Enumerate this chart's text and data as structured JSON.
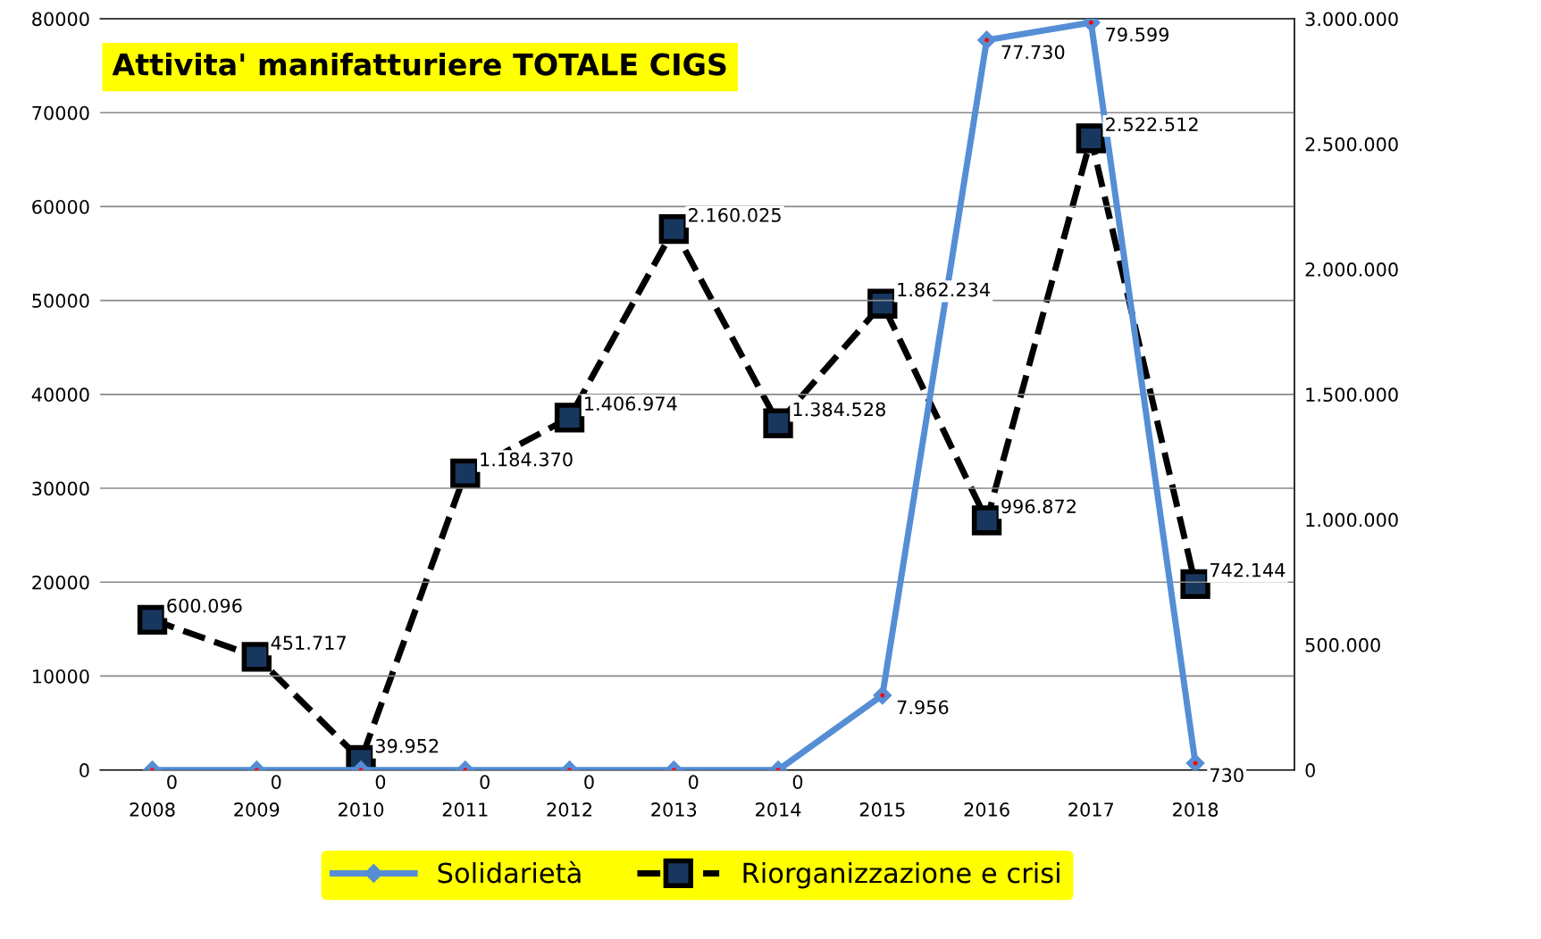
{
  "chart_data": {
    "type": "line",
    "title": "Attivita' manifatturiere TOTALE CIGS",
    "categories": [
      "2008",
      "2009",
      "2010",
      "2011",
      "2012",
      "2013",
      "2014",
      "2015",
      "2016",
      "2017",
      "2018"
    ],
    "series": [
      {
        "name": "Solidarietà",
        "color": "#558ed5",
        "marker": "diamond",
        "line_style": "solid",
        "values": [
          0,
          0,
          0,
          0,
          0,
          0,
          0,
          7956,
          77730,
          79599,
          730
        ],
        "value_labels": [
          "0",
          "0",
          "0",
          "0",
          "0",
          "0",
          "0",
          "7.956",
          "77.730",
          "79.599",
          "730"
        ]
      },
      {
        "name": "Riorganizzazione e crisi",
        "color": "#000000",
        "marker": "square",
        "line_style": "dashed",
        "axis": "y2",
        "values": [
          600096,
          451717,
          39952,
          1184370,
          1406974,
          2160025,
          1384528,
          1862234,
          996872,
          2522512,
          742144
        ],
        "value_labels": [
          "600.096",
          "451.717",
          "39.952",
          "1.184.370",
          "1.406.974",
          "2.160.025",
          "1.384.528",
          "1.862.234",
          "996.872",
          "2.522.512",
          "742.144"
        ]
      }
    ],
    "ylim": [
      0,
      80000
    ],
    "yticks": [
      0,
      10000,
      20000,
      30000,
      40000,
      50000,
      60000,
      70000,
      80000
    ],
    "y2lim": [
      0,
      3000000
    ],
    "y2ticks": [
      {
        "value": 0,
        "label": "0"
      },
      {
        "value": 500000,
        "label": "500.000"
      },
      {
        "value": 1000000,
        "label": "1.000.000"
      },
      {
        "value": 1500000,
        "label": "1.500.000"
      },
      {
        "value": 2000000,
        "label": "2.000.000"
      },
      {
        "value": 2500000,
        "label": "2.500.000"
      },
      {
        "value": 3000000,
        "label": "3.000.000"
      }
    ],
    "grid": "y",
    "legend": "bottom"
  }
}
